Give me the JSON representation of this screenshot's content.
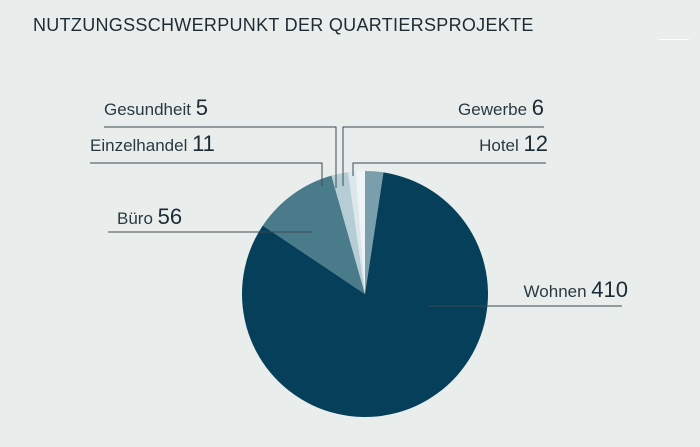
{
  "chart_data": {
    "type": "pie",
    "title": "NUTZUNGSSCHWERPUNKT DER QUARTIERSPROJEKTE",
    "slices": [
      {
        "label": "Hotel",
        "value": 12,
        "color": "#7a9eab"
      },
      {
        "label": "Wohnen",
        "value": 410,
        "color": "#063f59"
      },
      {
        "label": "Büro",
        "value": 56,
        "color": "#4a7b8b"
      },
      {
        "label": "Einzelhandel",
        "value": 11,
        "color": "#b6cdd5"
      },
      {
        "label": "Gesundheit",
        "value": 5,
        "color": "#dce7eb"
      },
      {
        "label": "Gewerbe",
        "value": 6,
        "color": "#eef4f6"
      }
    ],
    "order": "clockwise from 12 o'clock"
  }
}
